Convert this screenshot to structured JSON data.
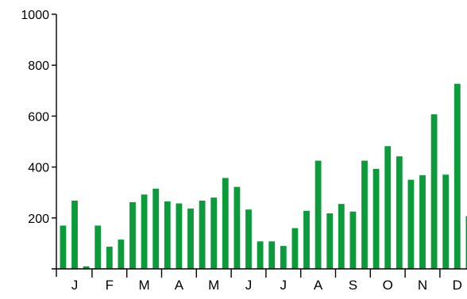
{
  "colors": {
    "bar": "#0b9b3b",
    "axis": "#000000"
  },
  "chart_data": {
    "type": "bar",
    "categories": [
      "J",
      "J",
      "J",
      "F",
      "F",
      "F",
      "M",
      "M",
      "M",
      "A",
      "A",
      "A",
      "M",
      "M",
      "M",
      "J",
      "J",
      "J",
      "J",
      "J",
      "J",
      "A",
      "A",
      "A",
      "S",
      "S",
      "S",
      "O",
      "O",
      "O",
      "N",
      "N",
      "N",
      "D",
      "D",
      "D"
    ],
    "values": [
      170,
      268,
      10,
      170,
      87,
      115,
      262,
      292,
      315,
      265,
      257,
      237,
      268,
      280,
      357,
      322,
      233,
      108,
      108,
      90,
      160,
      228,
      425,
      218,
      255,
      225,
      425,
      393,
      482,
      442,
      350,
      368,
      607,
      370,
      727,
      207
    ],
    "month_labels": [
      "J",
      "F",
      "M",
      "A",
      "M",
      "J",
      "J",
      "A",
      "S",
      "O",
      "N",
      "D"
    ],
    "y_tick_labels": [
      "200",
      "400",
      "600",
      "800",
      "1000"
    ],
    "ylim": [
      0,
      1000
    ],
    "title": "",
    "xlabel": "",
    "ylabel": "",
    "grid": false,
    "legend": "none"
  }
}
